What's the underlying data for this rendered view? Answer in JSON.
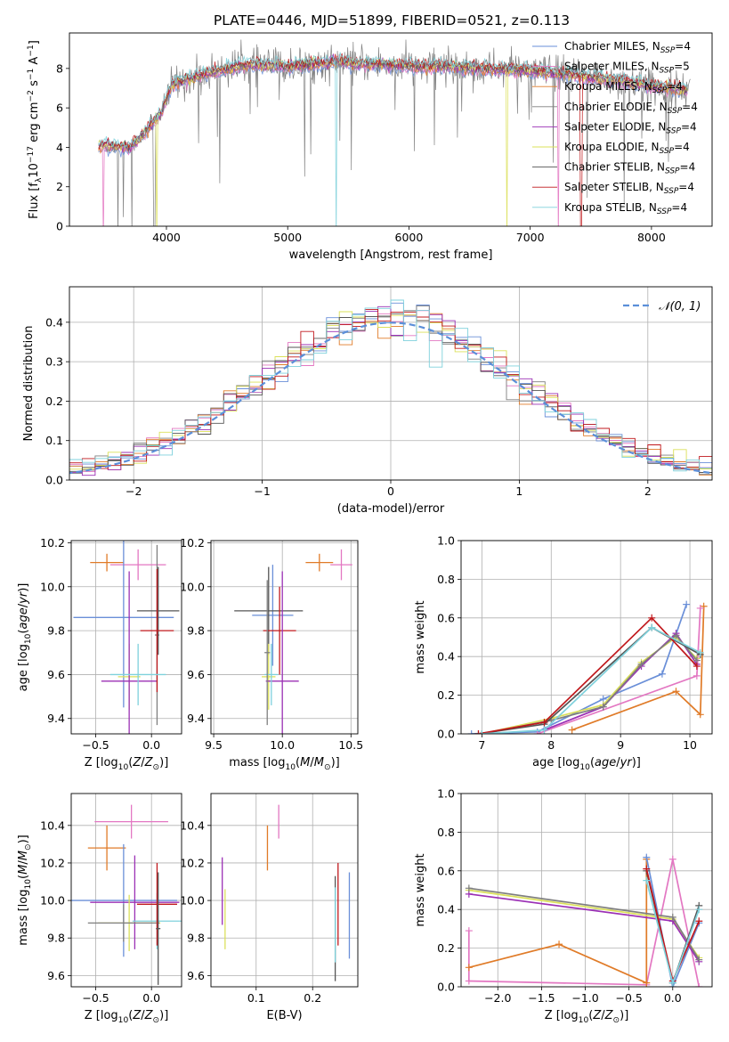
{
  "figure": {
    "title": "PLATE=0446, MJD=51899, FIBERID=0521, z=0.113"
  },
  "colors": {
    "Chabrier MILES": "#6a8fd8",
    "Salpeter MILES": "#e377c2",
    "Kroupa MILES": "#e07b28",
    "Chabrier ELODIE": "#7f7f7f",
    "Salpeter ELODIE": "#9b30b5",
    "Kroupa ELODIE": "#dbe05a",
    "Chabrier STELIB": "#555555",
    "Salpeter STELIB": "#c0181c",
    "Kroupa STELIB": "#7fd1dc"
  },
  "chart_data": [
    {
      "type": "line",
      "panel": "spectrum",
      "xlabel": "wavelength [Angstrom, rest frame]",
      "ylabel": "Flux [f_λ 10^-17 erg cm^-2 s^-1 A^-1]",
      "xlim": [
        3200,
        8500
      ],
      "ylim": [
        0,
        9.8
      ],
      "xticks": [
        4000,
        5000,
        6000,
        7000,
        8000
      ],
      "yticks": [
        0,
        2,
        4,
        6,
        8
      ],
      "grid": false,
      "legend_position": "right",
      "legend": [
        {
          "name": "Chabrier MILES",
          "nssp": "4"
        },
        {
          "name": "Salpeter MILES",
          "nssp": "5"
        },
        {
          "name": "Kroupa MILES",
          "nssp": "4"
        },
        {
          "name": "Chabrier ELODIE",
          "nssp": "4"
        },
        {
          "name": "Salpeter ELODIE",
          "nssp": "4"
        },
        {
          "name": "Kroupa ELODIE",
          "nssp": "4"
        },
        {
          "name": "Chabrier STELIB",
          "nssp": "4"
        },
        {
          "name": "Salpeter STELIB",
          "nssp": "4"
        },
        {
          "name": "Kroupa STELIB",
          "nssp": "4"
        }
      ],
      "continuum": {
        "x": [
          3450,
          3700,
          3800,
          3950,
          4050,
          4150,
          4300,
          4500,
          4700,
          5000,
          5400,
          5800,
          6000,
          6300,
          6600,
          7000,
          7300,
          7700,
          8000,
          8300
        ],
        "y": [
          4.1,
          4.0,
          4.6,
          5.7,
          7.2,
          7.4,
          7.7,
          8.0,
          8.2,
          8.1,
          8.3,
          8.2,
          8.1,
          8.1,
          8.0,
          7.9,
          7.7,
          7.4,
          7.1,
          6.9
        ]
      }
    },
    {
      "type": "line",
      "panel": "residual-histogram",
      "xlabel": "(data-model)/error",
      "ylabel": "Normed distribution",
      "xlim": [
        -2.5,
        2.5
      ],
      "ylim": [
        0,
        0.49
      ],
      "xticks": [
        -2,
        -1,
        0,
        1,
        2
      ],
      "yticks": [
        0.0,
        0.1,
        0.2,
        0.3,
        0.4
      ],
      "grid": true,
      "legend_position": "top-right",
      "reference_label": "𝒩(0, 1)",
      "reference_color": "#5b8fd9",
      "bin_width": 0.1
    },
    {
      "type": "scatter",
      "panel": "age-vs-Z",
      "xlabel": "Z [log10(Z/Z⊙)]",
      "ylabel": "age [log10(age/yr)]",
      "xlim": [
        -0.72,
        0.27
      ],
      "ylim": [
        9.33,
        10.21
      ],
      "xticks": [
        -0.5,
        0.0
      ],
      "yticks": [
        9.4,
        9.6,
        9.8,
        10.0,
        10.2
      ],
      "grid": true,
      "points": [
        {
          "model": "Kroupa MILES",
          "x": -0.4,
          "xerr": 0.15,
          "y": 10.11,
          "yerr": 0.04
        },
        {
          "model": "Salpeter MILES",
          "x": -0.12,
          "xerr": 0.25,
          "y": 10.1,
          "yerr": 0.07
        },
        {
          "model": "Chabrier MILES",
          "x": -0.25,
          "xerr": 0.45,
          "y": 9.86,
          "yerr": 0.41
        },
        {
          "model": "Kroupa ELODIE",
          "x": -0.2,
          "xerr": 0.1,
          "y": 9.59,
          "yerr": 0.15
        },
        {
          "model": "Salpeter ELODIE",
          "x": -0.2,
          "xerr": 0.25,
          "y": 9.57,
          "yerr": 0.5
        },
        {
          "model": "Chabrier ELODIE",
          "x": 0.05,
          "xerr": 0.02,
          "y": 9.78,
          "yerr": 0.41
        },
        {
          "model": "Chabrier STELIB",
          "x": 0.06,
          "xerr": 0.19,
          "y": 9.89,
          "yerr": 0.2
        },
        {
          "model": "Salpeter STELIB",
          "x": 0.05,
          "xerr": 0.15,
          "y": 9.8,
          "yerr": 0.28
        },
        {
          "model": "Kroupa STELIB",
          "x": -0.12,
          "xerr": 0.25,
          "y": 9.6,
          "yerr": 0.14
        }
      ]
    },
    {
      "type": "scatter",
      "panel": "age-vs-mass",
      "xlabel": "mass [log10(M/M⊙)]",
      "ylabel": "",
      "xlim": [
        9.48,
        10.55
      ],
      "ylim": [
        9.33,
        10.21
      ],
      "xticks": [
        9.5,
        10.0,
        10.5
      ],
      "yticks": [
        9.4,
        9.6,
        9.8,
        10.0,
        10.2
      ],
      "grid": true,
      "points": [
        {
          "model": "Kroupa MILES",
          "x": 10.27,
          "xerr": 0.1,
          "y": 10.11,
          "yerr": 0.04
        },
        {
          "model": "Salpeter MILES",
          "x": 10.43,
          "xerr": 0.08,
          "y": 10.1,
          "yerr": 0.07
        },
        {
          "model": "Chabrier MILES",
          "x": 9.93,
          "xerr": 0.15,
          "y": 9.87,
          "yerr": 0.23
        },
        {
          "model": "Chabrier STELIB",
          "x": 9.9,
          "xerr": 0.25,
          "y": 9.89,
          "yerr": 0.2
        },
        {
          "model": "Salpeter STELIB",
          "x": 9.98,
          "xerr": 0.12,
          "y": 9.8,
          "yerr": 0.2
        },
        {
          "model": "Kroupa ELODIE",
          "x": 9.9,
          "xerr": 0.05,
          "y": 9.59,
          "yerr": 0.15
        },
        {
          "model": "Salpeter ELODIE",
          "x": 10.0,
          "xerr": 0.12,
          "y": 9.57,
          "yerr": 0.5
        },
        {
          "model": "Kroupa STELIB",
          "x": 9.92,
          "xerr": 0.05,
          "y": 9.6,
          "yerr": 0.14
        },
        {
          "model": "Chabrier ELODIE",
          "x": 9.89,
          "xerr": 0.02,
          "y": 9.7,
          "yerr": 0.33
        }
      ]
    },
    {
      "type": "line",
      "panel": "mass-weight-vs-age",
      "xlabel": "age [log10(age/yr)]",
      "ylabel": "mass weight",
      "xlim": [
        6.7,
        10.32
      ],
      "ylim": [
        0,
        1.0
      ],
      "xticks": [
        7,
        8,
        9,
        10
      ],
      "yticks": [
        0.0,
        0.2,
        0.4,
        0.6,
        0.8,
        1.0
      ],
      "grid": true,
      "series": [
        {
          "model": "Chabrier MILES",
          "x": [
            6.85,
            7.8,
            8.75,
            9.6,
            9.95
          ],
          "y": [
            0.0,
            0.01,
            0.18,
            0.31,
            0.67
          ]
        },
        {
          "model": "Kroupa MILES",
          "x": [
            8.3,
            9.8,
            10.15,
            10.2
          ],
          "y": [
            0.02,
            0.22,
            0.1,
            0.66
          ]
        },
        {
          "model": "Salpeter MILES",
          "x": [
            7.8,
            10.1,
            10.15
          ],
          "y": [
            0.0,
            0.3,
            0.65
          ]
        },
        {
          "model": "Kroupa ELODIE",
          "x": [
            7.0,
            8.0,
            8.75,
            9.3,
            9.8,
            10.1
          ],
          "y": [
            0.0,
            0.08,
            0.15,
            0.37,
            0.5,
            0.39
          ]
        },
        {
          "model": "Salpeter ELODIE",
          "x": [
            7.9,
            8.75,
            9.3,
            9.8,
            10.1
          ],
          "y": [
            0.02,
            0.14,
            0.35,
            0.52,
            0.36
          ]
        },
        {
          "model": "Chabrier ELODIE",
          "x": [
            7.0,
            8.0,
            8.75,
            9.3,
            9.8,
            10.1
          ],
          "y": [
            0.0,
            0.07,
            0.14,
            0.36,
            0.51,
            0.38
          ]
        },
        {
          "model": "Chabrier STELIB",
          "x": [
            6.95,
            7.9,
            9.45,
            10.15
          ],
          "y": [
            0.0,
            0.05,
            0.55,
            0.41
          ]
        },
        {
          "model": "Salpeter STELIB",
          "x": [
            6.95,
            7.9,
            9.45,
            10.1
          ],
          "y": [
            0.0,
            0.06,
            0.6,
            0.35
          ]
        },
        {
          "model": "Kroupa STELIB",
          "x": [
            7.0,
            7.9,
            9.45,
            10.15
          ],
          "y": [
            0.0,
            0.02,
            0.55,
            0.42
          ]
        }
      ]
    },
    {
      "type": "scatter",
      "panel": "mass-vs-Z",
      "xlabel": "Z [log10(Z/Z⊙)]",
      "ylabel": "mass [log10(M/M⊙)]",
      "xlim": [
        -0.72,
        0.27
      ],
      "ylim": [
        9.54,
        10.57
      ],
      "xticks": [
        -0.5,
        0.0
      ],
      "yticks": [
        9.6,
        9.8,
        10.0,
        10.2,
        10.4
      ],
      "grid": true,
      "points": [
        {
          "model": "Salpeter MILES",
          "x": -0.18,
          "xerr": 0.33,
          "y": 10.42,
          "yerr": 0.09
        },
        {
          "model": "Kroupa MILES",
          "x": -0.4,
          "xerr": 0.17,
          "y": 10.28,
          "yerr": 0.12
        },
        {
          "model": "Chabrier MILES",
          "x": -0.25,
          "xerr": 0.48,
          "y": 10.0,
          "yerr": 0.3
        },
        {
          "model": "Salpeter ELODIE",
          "x": -0.15,
          "xerr": 0.4,
          "y": 9.99,
          "yerr": 0.25
        },
        {
          "model": "Kroupa ELODIE",
          "x": -0.2,
          "xerr": 0.28,
          "y": 9.88,
          "yerr": 0.15
        },
        {
          "model": "Chabrier ELODIE",
          "x": -0.25,
          "xerr": 0.32,
          "y": 9.88,
          "yerr": 0.1
        },
        {
          "model": "Kroupa STELIB",
          "x": 0.05,
          "xerr": 0.22,
          "y": 9.89,
          "yerr": 0.15
        },
        {
          "model": "Salpeter STELIB",
          "x": 0.05,
          "xerr": 0.18,
          "y": 9.98,
          "yerr": 0.22
        },
        {
          "model": "Chabrier STELIB",
          "x": 0.06,
          "xerr": 0.02,
          "y": 9.85,
          "yerr": 0.3
        }
      ]
    },
    {
      "type": "scatter",
      "panel": "mass-vs-EBV",
      "xlabel": "E(B-V)",
      "ylabel": "",
      "xlim": [
        0.02,
        0.28
      ],
      "ylim": [
        9.54,
        10.57
      ],
      "xticks": [
        0.1,
        0.2
      ],
      "yticks": [
        9.6,
        9.8,
        10.0,
        10.2,
        10.4
      ],
      "grid": true,
      "points": [
        {
          "model": "Salpeter MILES",
          "x": 0.14,
          "y": 10.42,
          "yerr": 0.09
        },
        {
          "model": "Kroupa MILES",
          "x": 0.12,
          "y": 10.28,
          "yerr": 0.12
        },
        {
          "model": "Salpeter ELODIE",
          "x": 0.04,
          "y": 10.05,
          "yerr": 0.18
        },
        {
          "model": "Kroupa ELODIE",
          "x": 0.045,
          "y": 9.9,
          "yerr": 0.16
        },
        {
          "model": "Chabrier MILES",
          "x": 0.265,
          "y": 9.92,
          "yerr": 0.23
        },
        {
          "model": "Salpeter STELIB",
          "x": 0.245,
          "y": 9.98,
          "yerr": 0.22
        },
        {
          "model": "Chabrier STELIB",
          "x": 0.24,
          "y": 9.85,
          "yerr": 0.28
        },
        {
          "model": "Kroupa STELIB",
          "x": 0.24,
          "y": 9.87,
          "yerr": 0.2
        }
      ]
    },
    {
      "type": "line",
      "panel": "mass-weight-vs-Z",
      "xlabel": "Z [log10(Z/Z⊙)]",
      "ylabel": "mass weight",
      "xlim": [
        -2.42,
        0.45
      ],
      "ylim": [
        0,
        1.0
      ],
      "xticks": [
        -2.0,
        -1.5,
        -1.0,
        -0.5,
        0.0
      ],
      "yticks": [
        0.0,
        0.2,
        0.4,
        0.6,
        0.8,
        1.0
      ],
      "grid": true,
      "series": [
        {
          "model": "Salpeter MILES",
          "x": [
            -2.33,
            -2.33,
            -0.3,
            0.0,
            0.3
          ],
          "y": [
            0.29,
            0.03,
            0.01,
            0.66,
            0.0
          ]
        },
        {
          "model": "Kroupa MILES",
          "x": [
            -2.33,
            -1.3,
            -0.3,
            -0.3
          ],
          "y": [
            0.1,
            0.22,
            0.02,
            0.66
          ]
        },
        {
          "model": "Chabrier MILES",
          "x": [
            -0.3,
            0.0,
            0.3
          ],
          "y": [
            0.67,
            0.0,
            0.33
          ]
        },
        {
          "model": "Kroupa ELODIE",
          "x": [
            -2.33,
            0.0,
            0.3
          ],
          "y": [
            0.5,
            0.35,
            0.15
          ]
        },
        {
          "model": "Salpeter ELODIE",
          "x": [
            -2.33,
            0.0,
            0.3
          ],
          "y": [
            0.48,
            0.34,
            0.13
          ]
        },
        {
          "model": "Chabrier ELODIE",
          "x": [
            -2.33,
            0.0,
            0.3
          ],
          "y": [
            0.51,
            0.36,
            0.14
          ]
        },
        {
          "model": "Chabrier STELIB",
          "x": [
            -0.3,
            0.0,
            0.3
          ],
          "y": [
            0.6,
            0.02,
            0.42
          ]
        },
        {
          "model": "Salpeter STELIB",
          "x": [
            -0.3,
            0.0,
            0.3
          ],
          "y": [
            0.61,
            0.03,
            0.34
          ]
        },
        {
          "model": "Kroupa STELIB",
          "x": [
            -0.3,
            0.0,
            0.3
          ],
          "y": [
            0.55,
            0.02,
            0.4
          ]
        }
      ]
    }
  ]
}
